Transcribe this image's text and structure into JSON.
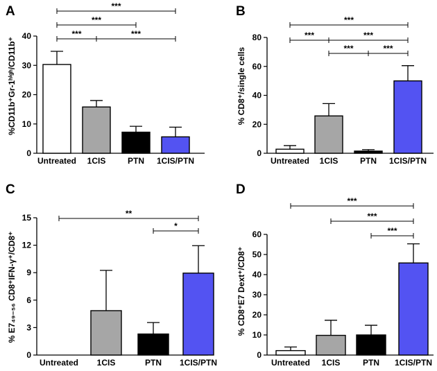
{
  "chart_data": [
    {
      "panel": "A",
      "type": "bar",
      "categories": [
        "Untreated",
        "1CIS",
        "PTN",
        "1CIS/PTN"
      ],
      "values": [
        30.3,
        15.8,
        7.2,
        5.6
      ],
      "errors": [
        4.5,
        2.2,
        2.0,
        3.3
      ],
      "colors": [
        "#ffffff",
        "#a6a6a6",
        "#000000",
        "#5353f2"
      ],
      "ylabel": "%CD11b⁺Gr-1ʰⁱᵍʰ/CD11b⁺",
      "ylim": [
        0,
        40
      ],
      "yticks": [
        "0",
        "10",
        "20",
        "30",
        "40"
      ],
      "significance": [
        {
          "from": 0,
          "to": 3,
          "label": "***"
        },
        {
          "from": 0,
          "to": 2,
          "label": "***"
        },
        {
          "from": 0,
          "to": 1,
          "label": "***"
        },
        {
          "from": 1,
          "to": 3,
          "label": "***"
        }
      ]
    },
    {
      "panel": "B",
      "type": "bar",
      "categories": [
        "Untreated",
        "1CIS",
        "PTN",
        "1CIS/PTN"
      ],
      "values": [
        2.8,
        25.8,
        1.5,
        50.0
      ],
      "errors": [
        2.5,
        8.5,
        1.0,
        10.5
      ],
      "colors": [
        "#ffffff",
        "#a6a6a6",
        "#000000",
        "#5353f2"
      ],
      "ylabel": "% CD8⁺/single cells",
      "ylim": [
        0,
        80
      ],
      "yticks": [
        "0",
        "20",
        "40",
        "60",
        "80"
      ],
      "significance": [
        {
          "from": 0,
          "to": 3,
          "label": "***"
        },
        {
          "from": 0,
          "to": 1,
          "label": "***"
        },
        {
          "from": 1,
          "to": 3,
          "label": "***"
        },
        {
          "from": 1,
          "to": 2,
          "label": "***"
        },
        {
          "from": 2,
          "to": 3,
          "label": "***"
        }
      ]
    },
    {
      "panel": "C",
      "type": "bar",
      "categories": [
        "Untreated",
        "1CIS",
        "PTN",
        "1CIS/PTN"
      ],
      "values": [
        0,
        4.85,
        2.3,
        8.95
      ],
      "errors": [
        0,
        4.4,
        1.25,
        3.0
      ],
      "colors": [
        "#ffffff",
        "#a6a6a6",
        "#000000",
        "#5353f2"
      ],
      "ylabel": "% E7₄₉₋₅₆ CD8⁺IFN-γ⁺/CD8⁺",
      "ylim": [
        0,
        15
      ],
      "yticks": [
        "0",
        "3",
        "6",
        "9",
        "12",
        "15"
      ],
      "significance": [
        {
          "from": 0,
          "to": 3,
          "label": "**"
        },
        {
          "from": 2,
          "to": 3,
          "label": "*"
        }
      ]
    },
    {
      "panel": "D",
      "type": "bar",
      "categories": [
        "Untreated",
        "1CIS",
        "PTN",
        "1CIS/PTN"
      ],
      "values": [
        2.2,
        9.8,
        10.0,
        45.8
      ],
      "errors": [
        1.8,
        7.5,
        4.8,
        9.5
      ],
      "colors": [
        "#ffffff",
        "#a6a6a6",
        "#000000",
        "#5353f2"
      ],
      "ylabel": "% CD8⁺E7 Dext⁺/CD8⁺",
      "ylim": [
        0,
        60
      ],
      "yticks": [
        "0",
        "10",
        "20",
        "30",
        "40",
        "50",
        "60"
      ],
      "significance": [
        {
          "from": 0,
          "to": 3,
          "label": "***"
        },
        {
          "from": 1,
          "to": 3,
          "label": "***"
        },
        {
          "from": 2,
          "to": 3,
          "label": "***"
        }
      ]
    }
  ]
}
